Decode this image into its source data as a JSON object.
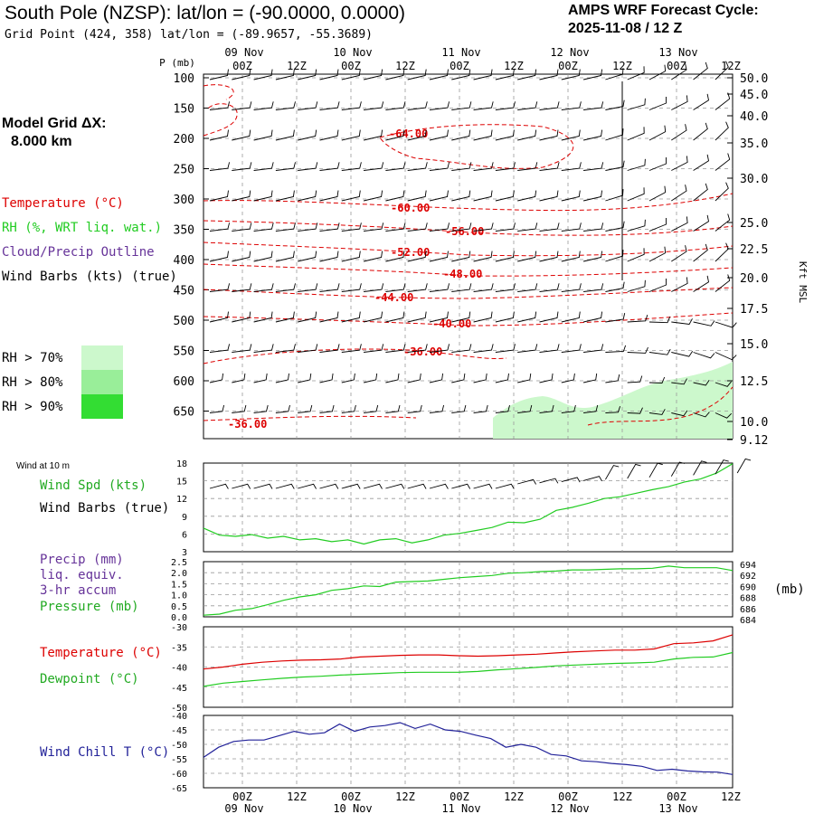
{
  "header": {
    "title": "South Pole (NZSP):  lat/lon = (-90.0000, 0.0000)",
    "grid_point": "Grid Point (424, 358) lat/lon = (-89.9657, -55.3689)",
    "forecast_label": "AMPS WRF Forecast Cycle:",
    "forecast_cycle": "2025-11-08 / 12  Z"
  },
  "left_panel": {
    "model_grid": "Model Grid ΔX:",
    "grid_value": "8.000 km",
    "temp_legend": "Temperature (°C)",
    "rh_legend": "RH (%, WRT liq. wat.)",
    "cloud_legend": "Cloud/Precip Outline",
    "wind_legend": "Wind Barbs (kts) (true)",
    "rh70": "RH > 70%",
    "rh80": "RH > 80%",
    "rh90": "RH > 90%",
    "colors": {
      "rh70": "#ccf8cc",
      "rh80": "#99ee99",
      "rh90": "#33dd33",
      "temp": "#dd0000",
      "rh": "#22cc22",
      "cloud": "#663399"
    }
  },
  "panel_labels": {
    "wind10": "Wind at 10 m",
    "wind_spd": "Wind Spd (kts)",
    "wind_barbs": "Wind Barbs (true)",
    "precip": "Precip (mm)",
    "liq": "liq. equiv.",
    "accum": "3-hr accum",
    "pressure": "Pressure (mb)",
    "pressure_unit": "(mb)",
    "temperature": "Temperature (°C)",
    "dewpoint": "Dewpoint (°C)",
    "wind_chill": "Wind Chill T (°C)"
  },
  "chart_data": [
    {
      "type": "cross-section",
      "ylabel": "P (mb)",
      "right_label": "Kft MSL",
      "x_ticks": [
        "00Z",
        "12Z",
        "00Z",
        "12Z",
        "00Z",
        "12Z",
        "00Z",
        "12Z",
        "00Z",
        "12Z"
      ],
      "date_labels": [
        "09 Nov",
        "10 Nov",
        "11 Nov",
        "12 Nov",
        "13 Nov"
      ],
      "pressure_ticks": [
        "100",
        "150",
        "200",
        "250",
        "300",
        "350",
        "400",
        "450",
        "500",
        "550",
        "600",
        "650"
      ],
      "height_ticks": [
        "50.0",
        "45.0",
        "40.0",
        "35.0",
        "30.0",
        "25.0",
        "22.5",
        "20.0",
        "17.5",
        "15.0",
        "12.5",
        "10.0",
        "9.12"
      ],
      "temp_labels": [
        "-64.00",
        "-60.00",
        "-56.00",
        "-52.00",
        "-48.00",
        "-44.00",
        "-40.00",
        "-36.00",
        "-36.00"
      ]
    },
    {
      "type": "line",
      "title": "Wind Spd (kts)",
      "yticks": [
        "18",
        "15",
        "12",
        "9",
        "6",
        "3"
      ],
      "ylim": [
        3,
        18
      ],
      "values": [
        7,
        5.8,
        5.6,
        5.9,
        5.3,
        5.6,
        5,
        5.2,
        4.7,
        5,
        4.3,
        5,
        5.2,
        4.5,
        5,
        5.8,
        6.1,
        6.6,
        7.1,
        8,
        7.9,
        8.5,
        10,
        10.5,
        11.2,
        12,
        12.3,
        12.9,
        13.5,
        14,
        14.8,
        15.3,
        16.3,
        17.9
      ]
    },
    {
      "type": "line",
      "title": "Pressure (mb)",
      "yticks": [
        "2.5",
        "2.0",
        "1.5",
        "1.0",
        "0.5",
        "0.0"
      ],
      "right_ticks": [
        "694",
        "692",
        "690",
        "688",
        "686",
        "684"
      ],
      "ylim": [
        684,
        694
      ],
      "values": [
        684.3,
        684.5,
        685.2,
        685.5,
        686.2,
        687.0,
        687.6,
        688.0,
        688.8,
        689.1,
        689.6,
        689.5,
        690.3,
        690.4,
        690.5,
        690.8,
        691.1,
        691.3,
        691.5,
        691.9,
        692.0,
        692.2,
        692.3,
        692.5,
        692.5,
        692.6,
        692.7,
        692.7,
        692.8,
        693.2,
        692.9,
        692.9,
        692.9,
        692.4
      ]
    },
    {
      "type": "line",
      "title": "Temperature / Dewpoint (°C)",
      "yticks": [
        "-30",
        "-35",
        "-40",
        "-45",
        "-50"
      ],
      "ylim": [
        -50,
        -30
      ],
      "series": [
        {
          "name": "Temperature",
          "values": [
            -40.5,
            -40,
            -39.3,
            -38.8,
            -38.5,
            -38.3,
            -38.2,
            -38,
            -37.5,
            -37.3,
            -37.1,
            -37,
            -37,
            -37.2,
            -37.3,
            -37.2,
            -37,
            -36.8,
            -36.5,
            -36.2,
            -36,
            -35.8,
            -35.8,
            -35.5,
            -34.2,
            -34,
            -33.5,
            -32
          ]
        },
        {
          "name": "Dewpoint",
          "values": [
            -44.8,
            -44,
            -43.6,
            -43.2,
            -42.8,
            -42.5,
            -42.3,
            -42,
            -41.8,
            -41.6,
            -41.4,
            -41.3,
            -41.3,
            -41.3,
            -41.1,
            -40.7,
            -40.4,
            -40.1,
            -39.7,
            -39.5,
            -39.3,
            -39.1,
            -39,
            -38.8,
            -38,
            -37.6,
            -37.5,
            -36.4
          ]
        }
      ]
    },
    {
      "type": "line",
      "title": "Wind Chill T (°C)",
      "yticks": [
        "-40",
        "-45",
        "-50",
        "-55",
        "-60",
        "-65"
      ],
      "ylim": [
        -65,
        -40
      ],
      "values": [
        -54.5,
        -51,
        -49,
        -48.5,
        -48.5,
        -47,
        -45.5,
        -46.5,
        -46,
        -43,
        -45.5,
        -44,
        -43.5,
        -42.5,
        -44.5,
        -43,
        -45,
        -45.5,
        -46.8,
        -48,
        -51,
        -50,
        -51,
        -53.5,
        -54,
        -55.7,
        -56,
        -56.6,
        -57,
        -57.6,
        -59,
        -58.6,
        -59.2,
        -59.5,
        -59.6,
        -60.4
      ]
    }
  ],
  "bottom_axis": {
    "x_ticks": [
      "00Z",
      "12Z",
      "00Z",
      "12Z",
      "00Z",
      "12Z",
      "00Z",
      "12Z",
      "00Z",
      "12Z"
    ],
    "date_labels": [
      "09 Nov",
      "10 Nov",
      "11 Nov",
      "12 Nov",
      "13 Nov"
    ]
  }
}
